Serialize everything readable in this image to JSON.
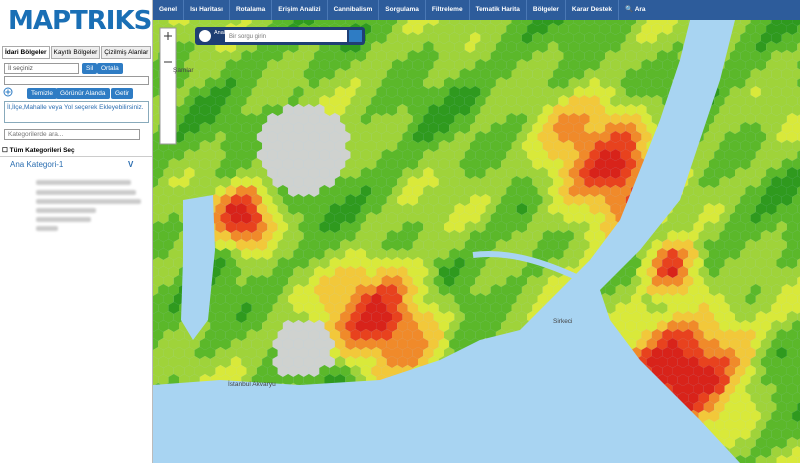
{
  "logo": "MAPTRIKS",
  "nav": [
    "Genel",
    "Isı Haritası",
    "Rotalama",
    "Erişim Analizi",
    "Cannibalism",
    "Sorgulama",
    "Filtreleme",
    "Tematik Harita",
    "Bölgeler",
    "Karar Destek"
  ],
  "search_label": "Ara",
  "tabs": [
    "İdari Bölgeler",
    "Kayıtlı Bölgeler",
    "Çizilmiş Alanlar"
  ],
  "province_select": "İl seçiniz",
  "buttons": {
    "delete": "Sil",
    "center": "Ortala",
    "clear": "Temizle",
    "visible_area": "Görünür Alanda",
    "fetch": "Getir"
  },
  "info_text": "İl,İlçe,Mahalle veya Yol seçerek Ekleyebilirsiniz.",
  "category_search": "Kategorilerde ara...",
  "select_all": "Tüm Kategorileri Seç",
  "category": {
    "name": "Ana Kategori-1",
    "toggle": "V"
  },
  "map": {
    "analyze_button": "Analize Başla",
    "query_placeholder": "Bir sorgu girin",
    "labels": [
      "Şamlar",
      "Sirkeci",
      "İstanbul Akvaryu"
    ]
  }
}
